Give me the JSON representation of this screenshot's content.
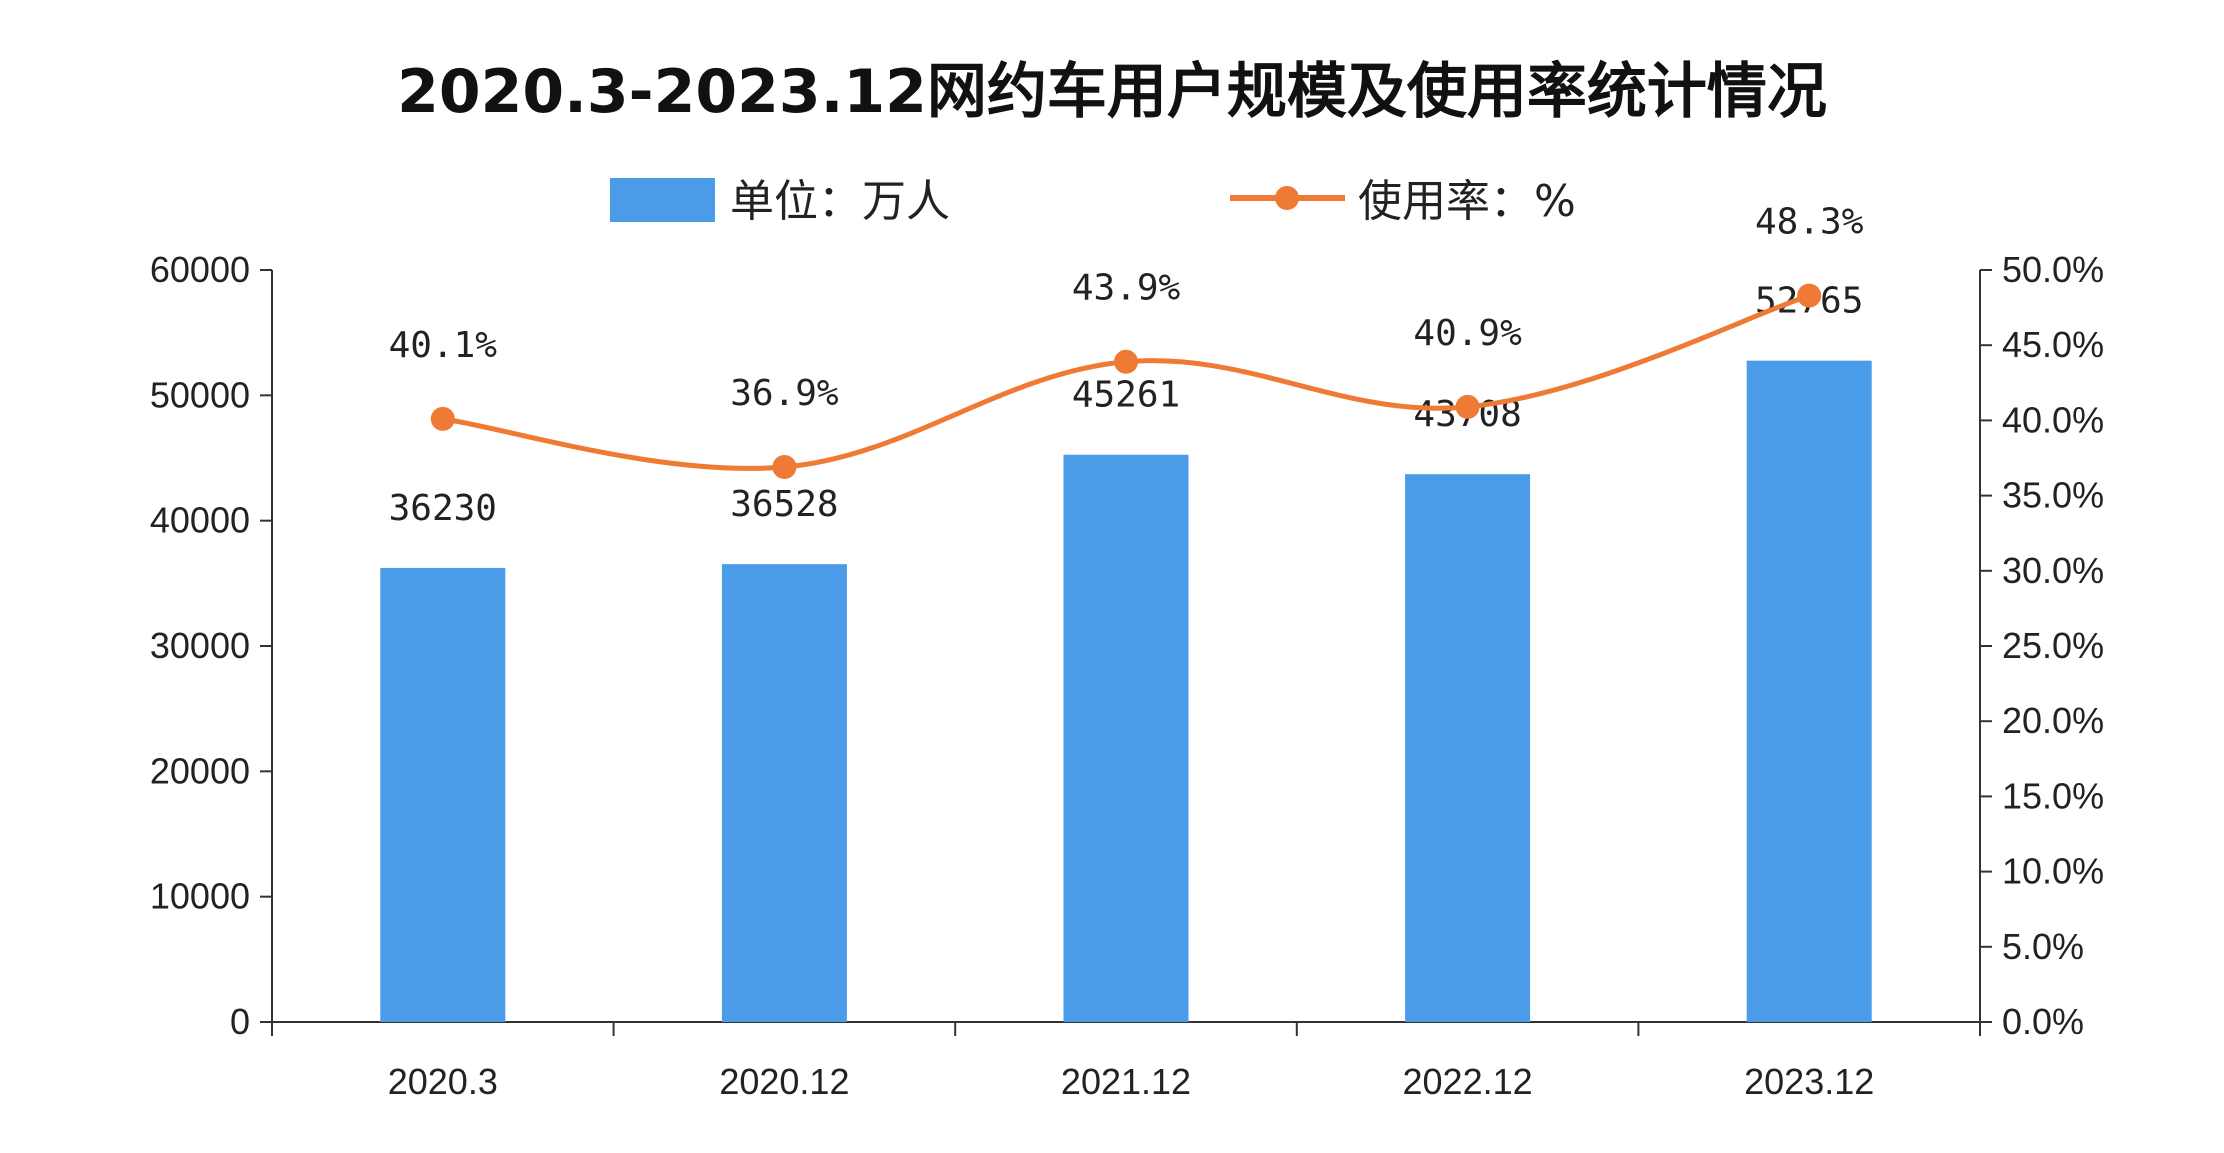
{
  "chart_data": {
    "type": "bar+line",
    "title": "2020.3-2023.12网约车用户规模及使用率统计情况",
    "categories": [
      "2020.3",
      "2020.12",
      "2021.12",
      "2022.12",
      "2023.12"
    ],
    "series": [
      {
        "name": "单位：万人",
        "type": "bar",
        "axis": "left",
        "color": "#4a9be8",
        "values": [
          36230,
          36528,
          45261,
          43708,
          52765
        ],
        "labels": [
          "36230",
          "36528",
          "45261",
          "43708",
          "52765"
        ]
      },
      {
        "name": "使用率：%",
        "type": "line",
        "axis": "right",
        "color": "#ee7a36",
        "values": [
          40.1,
          36.9,
          43.9,
          40.9,
          48.3
        ],
        "labels": [
          "40.1%",
          "36.9%",
          "43.9%",
          "40.9%",
          "48.3%"
        ]
      }
    ],
    "y_left": {
      "min": 0,
      "max": 60000,
      "ticks": [
        "0",
        "10000",
        "20000",
        "30000",
        "40000",
        "50000",
        "60000"
      ]
    },
    "y_right": {
      "min": 0,
      "max": 50,
      "ticks": [
        "0.0%",
        "5.0%",
        "10.0%",
        "15.0%",
        "20.0%",
        "25.0%",
        "30.0%",
        "35.0%",
        "40.0%",
        "45.0%",
        "50.0%"
      ]
    },
    "legend_position": "top-center",
    "grid": false
  }
}
